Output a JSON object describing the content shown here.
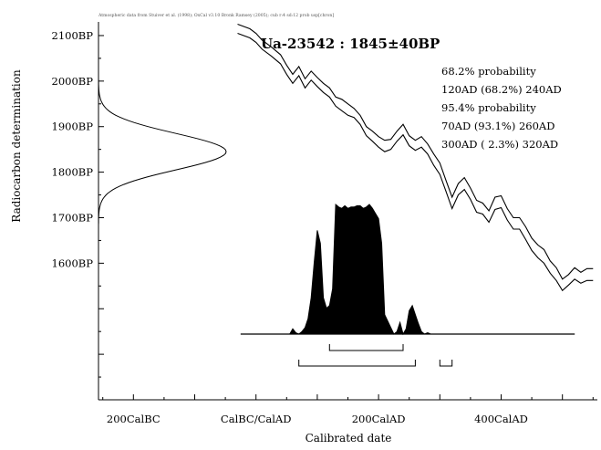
{
  "chart_data": {
    "type": "area",
    "credit": "Atmospheric data from Stuiver et al. (1998); OxCal v3.10 Bronk Ramsey (2005); cub r:4 sd:12 prob usp[chron]",
    "title": "Ua-23542 : 1845±40BP",
    "xlabel": "Calibrated date",
    "ylabel": "Radiocarbon determination",
    "x_axis": {
      "unit": "calendar year (negative = BC)",
      "range": [
        -257,
        557
      ],
      "ticks": [
        {
          "value": -200,
          "label": "200CalBC"
        },
        {
          "value": 0,
          "label": "CalBC/CalAD"
        },
        {
          "value": 200,
          "label": "200CalAD"
        },
        {
          "value": 400,
          "label": "400CalAD"
        }
      ]
    },
    "y_axis": {
      "unit": "radiocarbon years BP",
      "range": [
        1300,
        2130
      ],
      "ticks": [
        {
          "value": 2100,
          "label": "2100BP"
        },
        {
          "value": 2000,
          "label": "2000BP"
        },
        {
          "value": 1900,
          "label": "1900BP"
        },
        {
          "value": 1800,
          "label": "1800BP"
        },
        {
          "value": 1700,
          "label": "1700BP"
        },
        {
          "value": 1600,
          "label": "1600BP"
        }
      ]
    },
    "radiocarbon_measurement": {
      "mean": 1845,
      "sd": 40
    },
    "calibration_curve": {
      "x": [
        -30,
        -10,
        0,
        10,
        25,
        40,
        50,
        60,
        70,
        80,
        90,
        100,
        110,
        120,
        130,
        140,
        150,
        160,
        170,
        180,
        190,
        200,
        210,
        220,
        230,
        240,
        250,
        260,
        270,
        280,
        290,
        300,
        310,
        320,
        330,
        340,
        350,
        360,
        370,
        380,
        390,
        400,
        410,
        420,
        430,
        440,
        450,
        460,
        470,
        480,
        490,
        500,
        510,
        520,
        530,
        540,
        550
      ],
      "upper": [
        2125,
        2115,
        2105,
        2090,
        2075,
        2058,
        2035,
        2015,
        2032,
        2005,
        2022,
        2008,
        1995,
        1985,
        1965,
        1960,
        1950,
        1940,
        1925,
        1900,
        1890,
        1878,
        1870,
        1872,
        1890,
        1905,
        1880,
        1870,
        1878,
        1862,
        1840,
        1820,
        1782,
        1745,
        1775,
        1788,
        1765,
        1738,
        1732,
        1715,
        1745,
        1748,
        1720,
        1700,
        1700,
        1680,
        1655,
        1640,
        1630,
        1605,
        1590,
        1565,
        1575,
        1590,
        1580,
        1588,
        1588
      ],
      "lower": [
        2105,
        2095,
        2085,
        2070,
        2055,
        2038,
        2015,
        1995,
        2012,
        1985,
        2002,
        1988,
        1975,
        1965,
        1945,
        1935,
        1925,
        1920,
        1905,
        1880,
        1868,
        1855,
        1845,
        1850,
        1868,
        1882,
        1858,
        1848,
        1855,
        1840,
        1815,
        1795,
        1758,
        1720,
        1750,
        1762,
        1740,
        1712,
        1708,
        1690,
        1718,
        1722,
        1695,
        1675,
        1675,
        1652,
        1628,
        1612,
        1600,
        1578,
        1562,
        1540,
        1552,
        1565,
        1556,
        1562,
        1562
      ]
    },
    "probability_distribution": {
      "x": [
        -25,
        55,
        60,
        65,
        70,
        75,
        80,
        85,
        90,
        95,
        100,
        105,
        110,
        115,
        120,
        125,
        130,
        135,
        140,
        145,
        150,
        155,
        160,
        165,
        170,
        175,
        180,
        185,
        190,
        195,
        200,
        205,
        210,
        220,
        225,
        230,
        235,
        240,
        245,
        250,
        255,
        260,
        265,
        270,
        275,
        280,
        285,
        290,
        295,
        300,
        310,
        320,
        520
      ],
      "density": [
        0,
        0,
        0.04,
        0.01,
        0,
        0.02,
        0.05,
        0.12,
        0.28,
        0.55,
        0.8,
        0.7,
        0.28,
        0.2,
        0.22,
        0.35,
        1.0,
        0.98,
        0.97,
        0.99,
        0.97,
        0.98,
        0.98,
        0.99,
        0.99,
        0.97,
        0.98,
        1.0,
        0.97,
        0.93,
        0.89,
        0.7,
        0.15,
        0.05,
        0.0,
        0.02,
        0.09,
        0.0,
        0.04,
        0.18,
        0.22,
        0.15,
        0.08,
        0.02,
        0.0,
        0.01,
        0.0,
        0,
        0,
        0,
        0,
        0,
        0
      ]
    },
    "legend": {
      "sigma1_label": "68.2% probability",
      "sigma1_ranges": [
        "120AD (68.2%) 240AD"
      ],
      "sigma2_label": "95.4% probability",
      "sigma2_ranges": [
        "70AD (93.1%) 260AD",
        "300AD ( 2.3%) 320AD"
      ]
    },
    "range_brackets": {
      "sigma1": [
        [
          120,
          240
        ]
      ],
      "sigma2": [
        [
          70,
          260
        ],
        [
          300,
          320
        ]
      ]
    },
    "grid": false,
    "legend_placement": "top-right"
  }
}
